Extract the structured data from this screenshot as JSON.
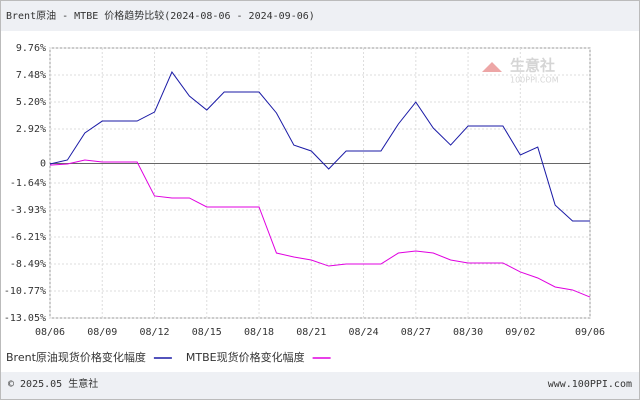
{
  "chart_data": {
    "type": "line",
    "title": "Brent原油 - MTBE 价格趋势比较(2024-08-06 - 2024-09-06)",
    "watermark": "生意社",
    "watermark_sub": "100PPI.COM",
    "copyright": "© 2025.05 生意社",
    "website": "www.100PPI.com",
    "categories": [
      "08/06",
      null,
      null,
      "08/09",
      null,
      null,
      "08/12",
      null,
      null,
      "08/15",
      null,
      null,
      "08/18",
      null,
      null,
      "08/21",
      null,
      null,
      "08/24",
      null,
      null,
      "08/27",
      null,
      null,
      "08/30",
      null,
      null,
      "09/02",
      null,
      null,
      null,
      "09/06"
    ],
    "series": [
      {
        "name": "Brent原油现货价格变化幅度",
        "color": "#1a1aa6",
        "values": [
          -0.04,
          0.3,
          2.58,
          3.59,
          3.59,
          3.59,
          4.35,
          7.73,
          5.7,
          4.52,
          6.04,
          6.04,
          6.04,
          4.27,
          1.56,
          1.06,
          -0.46,
          1.06,
          1.06,
          1.06,
          3.34,
          5.19,
          3.0,
          1.56,
          3.17,
          3.17,
          3.17,
          0.72,
          1.39,
          -3.51,
          -4.86,
          -4.86
        ]
      },
      {
        "name": "MTBE现货价格变化幅度",
        "color": "#e000e0",
        "values": [
          -0.13,
          -0.04,
          0.3,
          0.13,
          0.13,
          0.13,
          -2.74,
          -2.91,
          -2.91,
          -3.67,
          -3.67,
          -3.67,
          -3.67,
          -7.56,
          -7.9,
          -8.15,
          -8.66,
          -8.49,
          -8.49,
          -8.49,
          -7.56,
          -7.39,
          -7.56,
          -8.15,
          -8.4,
          -8.4,
          -8.4,
          -9.16,
          -9.67,
          -10.43,
          -10.68,
          -11.28
        ]
      }
    ],
    "ylim": [
      -13.05,
      9.76
    ],
    "yticks": [
      {
        "value": 9.76,
        "label": "9.76%"
      },
      {
        "value": 7.48,
        "label": "7.48%"
      },
      {
        "value": 5.2,
        "label": "5.20%"
      },
      {
        "value": 2.92,
        "label": "2.92%"
      },
      0,
      {
        "value": -1.64,
        "label": "-1.64%"
      },
      {
        "value": -3.93,
        "label": "-3.93%"
      },
      {
        "value": -6.21,
        "label": "-6.21%"
      },
      {
        "value": -8.49,
        "label": "-8.49%"
      },
      {
        "value": -10.77,
        "label": "-10.77%"
      },
      {
        "value": -13.05,
        "label": "-13.05%"
      }
    ],
    "grid": true
  }
}
